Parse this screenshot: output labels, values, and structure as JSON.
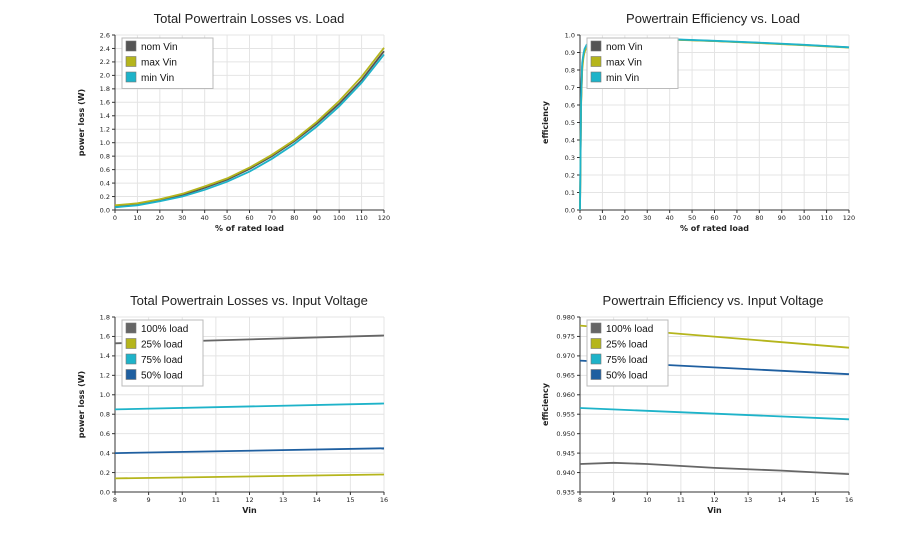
{
  "chart_data": [
    {
      "type": "line",
      "title": "Total Powertrain Losses vs. Load",
      "xlabel": "% of rated load",
      "ylabel": "power loss (W)",
      "xlim": [
        0,
        120
      ],
      "ylim": [
        0,
        2.6
      ],
      "xticks": [
        "0",
        "10",
        "20",
        "30",
        "40",
        "50",
        "60",
        "70",
        "80",
        "90",
        "100",
        "110",
        "120"
      ],
      "yticks": [
        "0.0",
        "0.2",
        "0.4",
        "0.6",
        "0.8",
        "1.0",
        "1.2",
        "1.4",
        "1.6",
        "1.8",
        "2.0",
        "2.2",
        "2.4",
        "2.6"
      ],
      "grid": true,
      "legend_position": "top-left",
      "series": [
        {
          "name": "nom Vin",
          "color": "#555555",
          "x": [
            0,
            10,
            20,
            30,
            40,
            50,
            60,
            70,
            80,
            90,
            100,
            110,
            120
          ],
          "y": [
            0.05,
            0.08,
            0.14,
            0.22,
            0.33,
            0.45,
            0.61,
            0.8,
            1.02,
            1.28,
            1.58,
            1.93,
            2.36
          ]
        },
        {
          "name": "max Vin",
          "color": "#b5b51c",
          "x": [
            0,
            10,
            20,
            30,
            40,
            50,
            60,
            70,
            80,
            90,
            100,
            110,
            120
          ],
          "y": [
            0.07,
            0.1,
            0.16,
            0.24,
            0.35,
            0.47,
            0.63,
            0.82,
            1.04,
            1.31,
            1.62,
            1.98,
            2.41
          ]
        },
        {
          "name": "min Vin",
          "color": "#1eb3c9",
          "x": [
            0,
            10,
            20,
            30,
            40,
            50,
            60,
            70,
            80,
            90,
            100,
            110,
            120
          ],
          "y": [
            0.04,
            0.07,
            0.13,
            0.2,
            0.3,
            0.42,
            0.57,
            0.76,
            0.98,
            1.24,
            1.54,
            1.89,
            2.31
          ]
        }
      ]
    },
    {
      "type": "line",
      "title": "Powertrain Efficiency vs. Load",
      "xlabel": "% of rated load",
      "ylabel": "efficiency",
      "xlim": [
        0,
        120
      ],
      "ylim": [
        0,
        1.0
      ],
      "xticks": [
        "0",
        "10",
        "20",
        "30",
        "40",
        "50",
        "60",
        "70",
        "80",
        "90",
        "100",
        "110",
        "120"
      ],
      "yticks": [
        "0.0",
        "0.1",
        "0.2",
        "0.3",
        "0.4",
        "0.5",
        "0.6",
        "0.7",
        "0.8",
        "0.9",
        "1.0"
      ],
      "grid": true,
      "legend_position": "top-left",
      "series": [
        {
          "name": "nom Vin",
          "color": "#555555",
          "x": [
            0,
            0.5,
            1,
            1.5,
            2,
            3,
            5,
            10,
            20,
            30,
            40,
            60,
            80,
            100,
            120
          ],
          "y": [
            0.0,
            0.62,
            0.82,
            0.88,
            0.91,
            0.94,
            0.96,
            0.975,
            0.979,
            0.978,
            0.975,
            0.966,
            0.955,
            0.943,
            0.929
          ]
        },
        {
          "name": "max Vin",
          "color": "#b5b51c",
          "x": [
            0,
            0.5,
            1,
            1.5,
            2,
            3,
            5,
            10,
            20,
            30,
            40,
            60,
            80,
            100,
            120
          ],
          "y": [
            0.0,
            0.6,
            0.8,
            0.87,
            0.9,
            0.935,
            0.955,
            0.972,
            0.977,
            0.976,
            0.974,
            0.965,
            0.954,
            0.942,
            0.928
          ]
        },
        {
          "name": "min Vin",
          "color": "#1eb3c9",
          "x": [
            0,
            0.5,
            1,
            1.5,
            2,
            3,
            5,
            10,
            20,
            30,
            40,
            60,
            80,
            100,
            120
          ],
          "y": [
            0.0,
            0.64,
            0.84,
            0.89,
            0.92,
            0.945,
            0.962,
            0.976,
            0.98,
            0.979,
            0.976,
            0.967,
            0.956,
            0.944,
            0.93
          ]
        }
      ]
    },
    {
      "type": "line",
      "title": "Total Powertrain Losses vs. Input Voltage",
      "xlabel": "Vin",
      "ylabel": "power loss (W)",
      "xlim": [
        8,
        16
      ],
      "ylim": [
        0,
        1.8
      ],
      "xticks": [
        "8",
        "9",
        "10",
        "11",
        "12",
        "13",
        "14",
        "15",
        "16"
      ],
      "yticks": [
        "0.0",
        "0.2",
        "0.4",
        "0.6",
        "0.8",
        "1.0",
        "1.2",
        "1.4",
        "1.6",
        "1.8"
      ],
      "grid": true,
      "legend_position": "top-left",
      "series": [
        {
          "name": "100% load",
          "color": "#666666",
          "x": [
            8,
            16
          ],
          "y": [
            1.53,
            1.61
          ]
        },
        {
          "name": "25% load",
          "color": "#b5b51c",
          "x": [
            8,
            16
          ],
          "y": [
            0.14,
            0.18
          ]
        },
        {
          "name": "75% load",
          "color": "#1eb3c9",
          "x": [
            8,
            16
          ],
          "y": [
            0.85,
            0.91
          ]
        },
        {
          "name": "50% load",
          "color": "#1f5fa0",
          "x": [
            8,
            16
          ],
          "y": [
            0.4,
            0.45
          ]
        }
      ]
    },
    {
      "type": "line",
      "title": "Powertrain Efficiency vs. Input Voltage",
      "xlabel": "Vin",
      "ylabel": "efficiency",
      "xlim": [
        8,
        16
      ],
      "ylim": [
        0.935,
        0.98
      ],
      "xticks": [
        "8",
        "9",
        "10",
        "11",
        "12",
        "13",
        "14",
        "15",
        "16"
      ],
      "yticks": [
        "0.935",
        "0.940",
        "0.945",
        "0.950",
        "0.955",
        "0.960",
        "0.965",
        "0.970",
        "0.975",
        "0.980"
      ],
      "grid": true,
      "legend_position": "top-left",
      "series": [
        {
          "name": "100% load",
          "color": "#666666",
          "x": [
            8,
            9,
            10,
            12,
            14,
            16
          ],
          "y": [
            0.9422,
            0.9425,
            0.9422,
            0.9412,
            0.9405,
            0.9396
          ]
        },
        {
          "name": "25% load",
          "color": "#b5b51c",
          "x": [
            8,
            16
          ],
          "y": [
            0.9778,
            0.9721
          ]
        },
        {
          "name": "75% load",
          "color": "#1eb3c9",
          "x": [
            8,
            16
          ],
          "y": [
            0.9566,
            0.9537
          ]
        },
        {
          "name": "50% load",
          "color": "#1f5fa0",
          "x": [
            8,
            16
          ],
          "y": [
            0.9688,
            0.9653
          ]
        }
      ]
    }
  ]
}
